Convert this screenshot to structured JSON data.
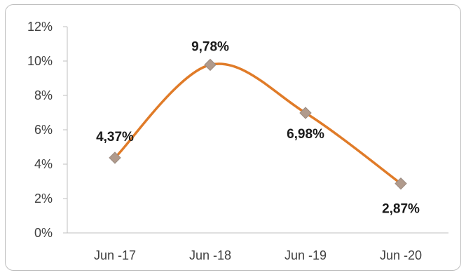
{
  "chart_data": {
    "type": "line",
    "categories": [
      "Jun -17",
      "Jun -18",
      "Jun -19",
      "Jun -20"
    ],
    "series": [
      {
        "values": [
          4.37,
          9.78,
          6.98,
          2.87
        ]
      }
    ],
    "data_labels": [
      "4,37%",
      "9,78%",
      "6,98%",
      "2,87%"
    ],
    "y_ticks": [
      "0%",
      "2%",
      "4%",
      "6%",
      "8%",
      "10%",
      "12%"
    ],
    "ylim": [
      0,
      12
    ],
    "smooth": true,
    "grid": false,
    "title": "",
    "xlabel": "",
    "ylabel": ""
  },
  "colors": {
    "line": "#E07B28",
    "marker": "#B09A8C",
    "axis": "#bfbfbf"
  }
}
